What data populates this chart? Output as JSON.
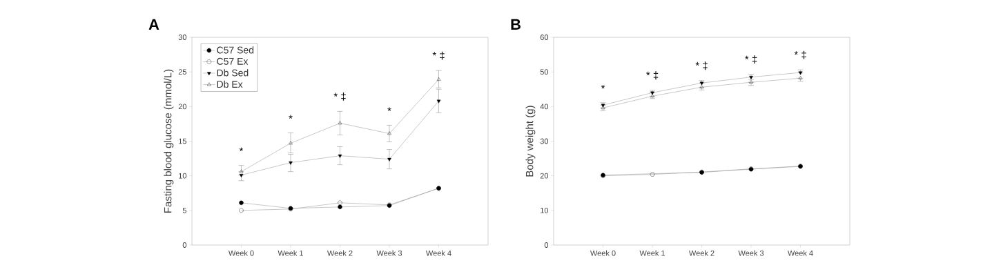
{
  "chart_data": [
    {
      "type": "line",
      "title": "A",
      "ylabel": "Fasting blood glucose (mmol/L)",
      "categories": [
        "Week 0",
        "Week 1",
        "Week 2",
        "Week 3",
        "Week 4"
      ],
      "ylim": [
        0,
        30
      ],
      "yticks": [
        0,
        5,
        10,
        15,
        20,
        25,
        30
      ],
      "legend": "top left",
      "series": [
        {
          "name": "C57 Sed",
          "color": "#000000",
          "marker": "circle",
          "values": [
            6.1,
            5.3,
            5.5,
            5.7,
            8.2
          ]
        },
        {
          "name": "C57 Ex",
          "color": "#000000",
          "marker": "circle_open",
          "values": [
            5.0,
            5.2,
            6.1,
            5.8,
            8.2
          ]
        },
        {
          "name": "Db Sed",
          "color": "#000000",
          "marker": "triangle_down",
          "values": [
            10.1,
            11.9,
            12.9,
            12.4,
            20.8
          ],
          "errors": [
            [
              9.3,
              10.1
            ],
            [
              10.6,
              13.1
            ],
            [
              11.6,
              14.2
            ],
            [
              11.0,
              13.8
            ],
            [
              19.1,
              22.5
            ]
          ]
        },
        {
          "name": "Db Ex",
          "color": "#000000",
          "marker": "triangle_open",
          "values": [
            10.6,
            14.7,
            17.6,
            16.1,
            23.9
          ],
          "errors": [
            [
              10.6,
              11.5
            ],
            [
              13.3,
              16.2
            ],
            [
              15.9,
              19.3
            ],
            [
              14.9,
              17.3
            ],
            [
              22.7,
              25.2
            ]
          ]
        }
      ],
      "annotations": [
        "*",
        "*",
        "* ‡",
        "*",
        "* ‡"
      ]
    },
    {
      "type": "line",
      "title": "B",
      "ylabel": "Body weight (g)",
      "categories": [
        "Week 0",
        "Week 1",
        "Week 2",
        "Week 3",
        "Week 4"
      ],
      "ylim": [
        0,
        60
      ],
      "yticks": [
        0,
        10,
        20,
        30,
        40,
        50,
        60
      ],
      "series": [
        {
          "color": "#000000",
          "marker": "circle",
          "values": [
            20.2,
            null,
            21.0,
            21.9,
            22.7
          ]
        },
        {
          "color": "#000000",
          "marker": "circle_open",
          "values": [
            20.0,
            20.4,
            21.1,
            22.0,
            22.8
          ]
        },
        {
          "color": "#000000",
          "marker": "triangle_down",
          "values": [
            40.4,
            44.0,
            46.8,
            48.5,
            49.8
          ],
          "errors": [
            [
              40.4,
              41.1
            ],
            [
              44.0,
              44.7
            ],
            [
              46.8,
              47.5
            ],
            [
              47.8,
              49.3
            ],
            [
              49.8,
              50.6
            ]
          ]
        },
        {
          "color": "#000000",
          "marker": "triangle_open",
          "values": [
            39.6,
            43.0,
            45.6,
            47.0,
            48.2
          ],
          "errors": [
            [
              38.8,
              39.6
            ],
            [
              42.3,
              43.0
            ],
            [
              44.8,
              45.6
            ],
            [
              46.1,
              47.0
            ],
            [
              47.3,
              48.2
            ]
          ]
        }
      ],
      "annotations": [
        "*",
        "* ‡",
        "* ‡",
        "* ‡",
        "* ‡"
      ]
    }
  ]
}
